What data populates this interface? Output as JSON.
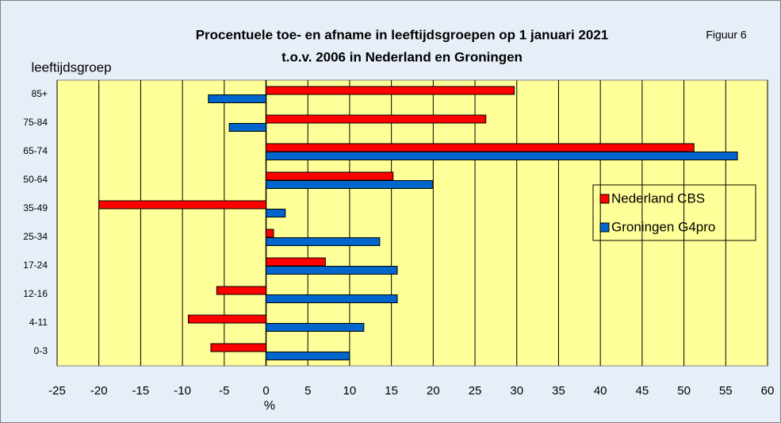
{
  "chart_data": {
    "type": "barh",
    "title": "Procentuele toe- en afname in leeftijdsgroepen op 1 januari 2021",
    "subtitle": "t.o.v. 2006 in Nederland en Groningen",
    "annotation": "Figuur 6",
    "ylabel": "leeftijdsgroep",
    "xlabel": "%",
    "categories": [
      "85+",
      "75-84",
      "65-74",
      "50-64",
      "35-49",
      "25-34",
      "17-24",
      "12-16",
      "4-11",
      "0-3"
    ],
    "series": [
      {
        "name": "Nederland CBS",
        "color": "#ff0000",
        "values": [
          29.7,
          26.3,
          51.2,
          15.2,
          -20.0,
          0.9,
          7.1,
          -5.9,
          -9.3,
          -6.6
        ]
      },
      {
        "name": "Groningen G4pro",
        "color": "#0066cc",
        "values": [
          -6.9,
          -4.4,
          56.4,
          19.9,
          2.3,
          13.6,
          15.7,
          15.7,
          11.7,
          10.0
        ]
      }
    ],
    "xlim": [
      -25,
      60
    ],
    "xticks": [
      -25,
      -20,
      -15,
      -10,
      -5,
      0,
      5,
      10,
      15,
      20,
      25,
      30,
      35,
      40,
      45,
      50,
      55,
      60
    ],
    "grid": true,
    "legend": "right"
  }
}
